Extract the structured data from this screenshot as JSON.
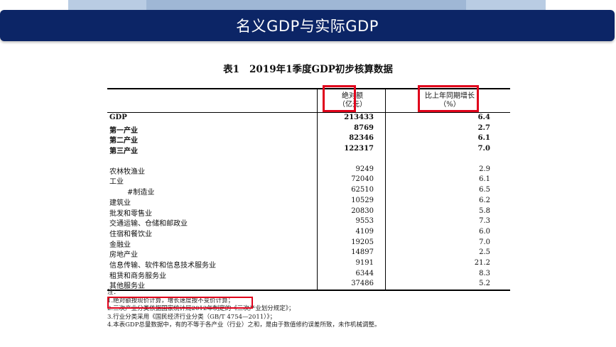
{
  "slide": {
    "title": "名义GDP与实际GDP"
  },
  "table": {
    "number": "表1",
    "caption": "2019年1季度GDP初步核算数据",
    "col_value_header": "绝对额\n（亿元）",
    "col_growth_header": "比上年同期增长\n（%）",
    "rows": [
      {
        "label": "GDP",
        "value": "213433",
        "growth": "6.4",
        "bold": true
      },
      {
        "label": "第一产业",
        "value": "8769",
        "growth": "2.7",
        "bold": true
      },
      {
        "label": "第二产业",
        "value": "82346",
        "growth": "6.1",
        "bold": true
      },
      {
        "label": "第三产业",
        "value": "122317",
        "growth": "7.0",
        "bold": true
      },
      {
        "label": "农林牧渔业",
        "value": "9249",
        "growth": "2.9"
      },
      {
        "label": "工业",
        "value": "72040",
        "growth": "6.1"
      },
      {
        "label": "#制造业",
        "value": "62510",
        "growth": "6.5",
        "indent": true
      },
      {
        "label": "建筑业",
        "value": "10529",
        "growth": "6.2"
      },
      {
        "label": "批发和零售业",
        "value": "20830",
        "growth": "5.8"
      },
      {
        "label": "交通运输、仓储和邮政业",
        "value": "9553",
        "growth": "7.3"
      },
      {
        "label": "住宿和餐饮业",
        "value": "4109",
        "growth": "6.0"
      },
      {
        "label": "金融业",
        "value": "19205",
        "growth": "7.0"
      },
      {
        "label": "房地产业",
        "value": "14897",
        "growth": "2.5"
      },
      {
        "label": "信息传输、软件和信息技术服务业",
        "value": "9191",
        "growth": "21.2"
      },
      {
        "label": "租赁和商务服务业",
        "value": "6344",
        "growth": "8.3"
      },
      {
        "label": "其他服务业",
        "value": "37486",
        "growth": "5.2"
      }
    ],
    "notes": {
      "title": "注：",
      "n1": "1.绝对额按现价计算，增长速度按不变价计算；",
      "n2": "2.三次产业分类依据国家统计局2012年制定的《三次产业划分规定》；",
      "n3": "3.行业分类采用《国民经济行业分类（GB/T 4754—2011）》；",
      "n4": "4.本表GDP总量数据中，有的不等于各产业（行业）之和，是由于数值修约误差所致，未作机械调整。"
    }
  },
  "colors": {
    "header_bg": "#0c2566",
    "highlight": "#e0001b"
  }
}
